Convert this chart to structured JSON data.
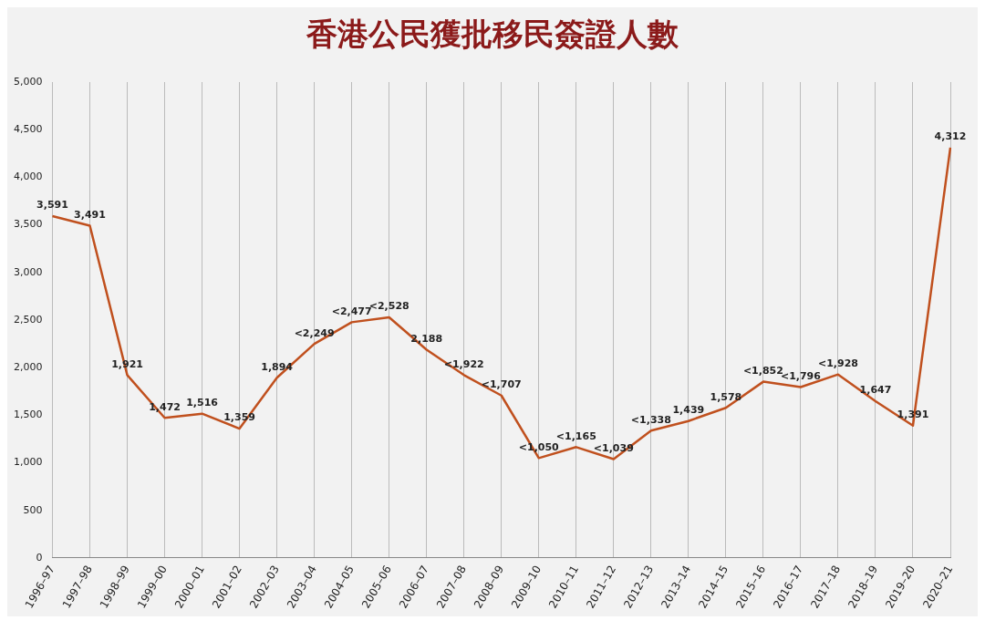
{
  "chart_data": {
    "type": "line",
    "title": "香港公民獲批移民簽證人數",
    "categories": [
      "1996–97",
      "1997–98",
      "1998–99",
      "1999–00",
      "2000–01",
      "2001–02",
      "2002–03",
      "2003–04",
      "2004–05",
      "2005–06",
      "2006–07",
      "2007–08",
      "2008–09",
      "2009–10",
      "2010–11",
      "2011–12",
      "2012–13",
      "2013–14",
      "2014–15",
      "2015–16",
      "2016–17",
      "2017–18",
      "2018–19",
      "2019–20",
      "2020–21"
    ],
    "series": [
      {
        "color": "#c0501e",
        "values": [
          3591,
          3491,
          1921,
          1472,
          1516,
          1359,
          1894,
          2249,
          2477,
          2528,
          2188,
          1922,
          1707,
          1050,
          1165,
          1039,
          1338,
          1439,
          1578,
          1852,
          1796,
          1928,
          1647,
          1391,
          4312
        ],
        "value_labels": [
          "3,591",
          "3,491",
          "1,921",
          "1,472",
          "1,516",
          "1,359",
          "1,894",
          "<2,249",
          "<2,477",
          "<2,528",
          "2,188",
          "<1,922",
          "<1,707",
          "<1,050",
          "<1,165",
          "<1,039",
          "<1,338",
          "1,439",
          "1,578",
          "<1,852",
          "<1,796",
          "<1,928",
          "1,647",
          "1,391",
          "4,312"
        ]
      }
    ],
    "ylim": [
      0,
      5000
    ],
    "yticks": [
      0,
      500,
      {
        "value": 1000,
        "label": "1,000"
      },
      {
        "value": 1500,
        "label": "1,500"
      },
      {
        "value": 2000,
        "label": "2,000"
      },
      {
        "value": 2500,
        "label": "2,500"
      },
      {
        "value": 3000,
        "label": "3,000"
      },
      {
        "value": 3500,
        "label": "3,500"
      },
      {
        "value": 4000,
        "label": "4,000"
      },
      {
        "value": 4500,
        "label": "4,500"
      },
      {
        "value": 5000,
        "label": "5,000"
      }
    ],
    "grid": "x",
    "legend": false,
    "marker": "none",
    "line_style": "solid"
  }
}
